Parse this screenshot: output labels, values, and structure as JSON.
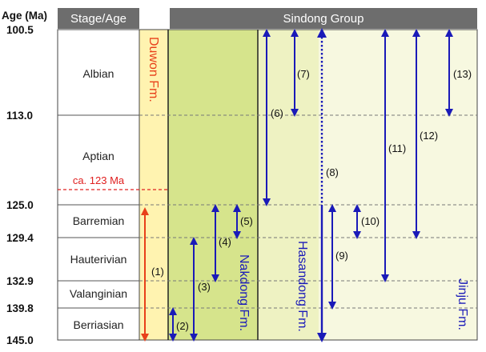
{
  "header": {
    "age_label": "Age (Ma)",
    "stage_label": "Stage/Age",
    "group_label": "Sindong Group"
  },
  "ages": [
    "100.5",
    "113.0",
    "125.0",
    "129.4",
    "132.9",
    "139.8",
    "145.0"
  ],
  "stages": [
    "Albian",
    "Aptian",
    "Barremian",
    "Hauterivian",
    "Valanginian",
    "Berriasian"
  ],
  "ca_label": "ca. 123 Ma",
  "formations": {
    "duwon": "Duwon Fm.",
    "nakdong": "Nakdong Fm.",
    "hasandong": "Hasandong Fm.",
    "jinju": "Jinju Fm."
  },
  "ranges": [
    {
      "label": "(1)",
      "from": 125.0,
      "to": 145.0
    },
    {
      "label": "(2)",
      "from": 139.8,
      "to": 145.0
    },
    {
      "label": "(3)",
      "from": 129.4,
      "to": 145.0
    },
    {
      "label": "(4)",
      "from": 125.0,
      "to": 132.9
    },
    {
      "label": "(5)",
      "from": 125.0,
      "to": 129.4
    },
    {
      "label": "(6)",
      "from": 100.5,
      "to": 125.0
    },
    {
      "label": "(7)",
      "from": 100.5,
      "to": 113.0
    },
    {
      "label": "(8)",
      "from": 100.5,
      "to": 145.0
    },
    {
      "label": "(9)",
      "from": 125.0,
      "to": 139.8
    },
    {
      "label": "(10)",
      "from": 125.0,
      "to": 129.4
    },
    {
      "label": "(11)",
      "from": 100.5,
      "to": 132.9
    },
    {
      "label": "(12)",
      "from": 100.5,
      "to": 129.4
    },
    {
      "label": "(13)",
      "from": 100.5,
      "to": 113.0
    }
  ],
  "colors": {
    "header_bg": "#6d6d6d",
    "duwon_bg": "#fff3b0",
    "nakdong_bg": "#d6e48c",
    "hasandong_bg": "#eef2c2",
    "jinju_bg": "#f7f8e0",
    "blue": "#1a1ab8",
    "red": "#e8401a",
    "dashed_red": "#e02020"
  }
}
